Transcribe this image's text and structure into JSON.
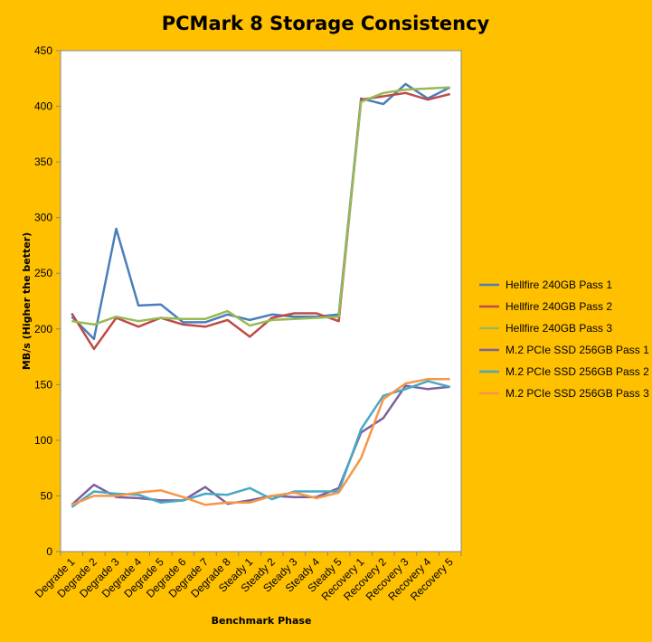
{
  "chart_data": {
    "type": "line",
    "title": "PCMark 8 Storage Consistency",
    "xlabel": "Benchmark Phase",
    "ylabel": "MB/s (Higher the better)",
    "ylim": [
      0,
      450
    ],
    "ytick_step": 50,
    "grid": false,
    "legend_position": "right",
    "categories": [
      "Degrade 1",
      "Degrade 2",
      "Degrade 3",
      "Degrade 4",
      "Degrade 5",
      "Degrade 6",
      "Degrade 7",
      "Degrade 8",
      "Steady 1",
      "Steady 2",
      "Steady 3",
      "Steady 4",
      "Steady 5",
      "Recovery 1",
      "Recovery 2",
      "Recovery 3",
      "Recovery 4",
      "Recovery 5"
    ],
    "series": [
      {
        "name": "Hellfire 240GB Pass 1",
        "color": "#4A7EBB",
        "values": [
          211,
          191,
          290,
          221,
          222,
          206,
          206,
          213,
          208,
          213,
          211,
          211,
          213,
          407,
          402,
          420,
          407,
          417
        ]
      },
      {
        "name": "Hellfire 240GB Pass 2",
        "color": "#BE4B48",
        "values": [
          214,
          182,
          210,
          202,
          210,
          204,
          202,
          208,
          193,
          210,
          214,
          214,
          207,
          406,
          409,
          412,
          406,
          411
        ]
      },
      {
        "name": "Hellfire 240GB Pass 3",
        "color": "#98B954",
        "values": [
          207,
          204,
          211,
          207,
          210,
          209,
          209,
          216,
          203,
          208,
          209,
          210,
          211,
          404,
          412,
          415,
          416,
          417
        ]
      },
      {
        "name": "M.2 PCIe SSD 256GB Pass 1",
        "color": "#7D60A0",
        "values": [
          42,
          60,
          49,
          48,
          46,
          46,
          58,
          43,
          46,
          50,
          49,
          49,
          57,
          107,
          120,
          149,
          146,
          148
        ]
      },
      {
        "name": "M.2 PCIe SSD 256GB Pass 2",
        "color": "#46AAC5",
        "values": [
          40,
          54,
          52,
          51,
          44,
          46,
          52,
          51,
          57,
          47,
          54,
          54,
          54,
          110,
          140,
          146,
          153,
          148
        ]
      },
      {
        "name": "M.2 PCIe SSD 256GB Pass 3",
        "color": "#F79646",
        "values": [
          42,
          50,
          50,
          53,
          55,
          49,
          42,
          44,
          44,
          50,
          53,
          48,
          53,
          84,
          137,
          151,
          155,
          155
        ]
      }
    ]
  }
}
